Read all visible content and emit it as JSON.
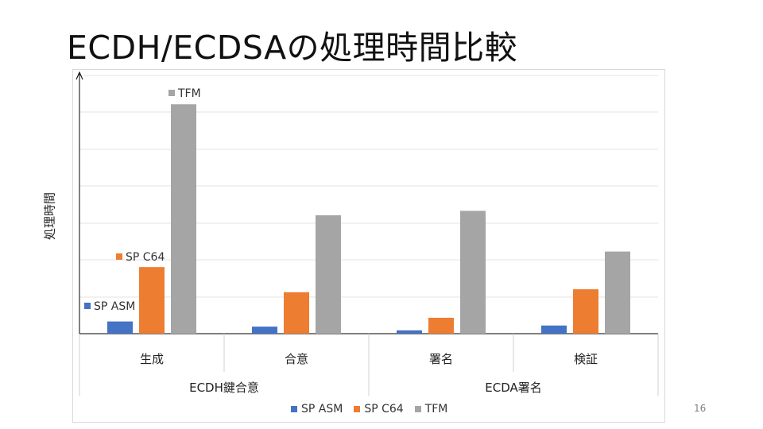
{
  "slide": {
    "title": "ECDH/ECDSAの処理時間比較",
    "page_number": "16"
  },
  "chart_data": {
    "type": "bar",
    "title": "",
    "ylabel": "処理時間",
    "xlabel": "",
    "grid": true,
    "legend": "bottom",
    "ylim": [
      0,
      7
    ],
    "categories": [
      "生成",
      "合意",
      "署名",
      "検証"
    ],
    "groups": [
      {
        "label": "ECDH鍵合意",
        "categories": [
          "生成",
          "合意"
        ]
      },
      {
        "label": "ECDA署名",
        "categories": [
          "署名",
          "検証"
        ]
      }
    ],
    "series": [
      {
        "name": "SP ASM",
        "color": "#4472c4",
        "values": [
          0.33,
          0.19,
          0.09,
          0.22
        ]
      },
      {
        "name": "SP C64",
        "color": "#ed7d31",
        "values": [
          1.8,
          1.12,
          0.43,
          1.2
        ]
      },
      {
        "name": "TFM",
        "color": "#a5a5a5",
        "values": [
          6.2,
          3.2,
          3.32,
          2.22
        ]
      }
    ]
  }
}
